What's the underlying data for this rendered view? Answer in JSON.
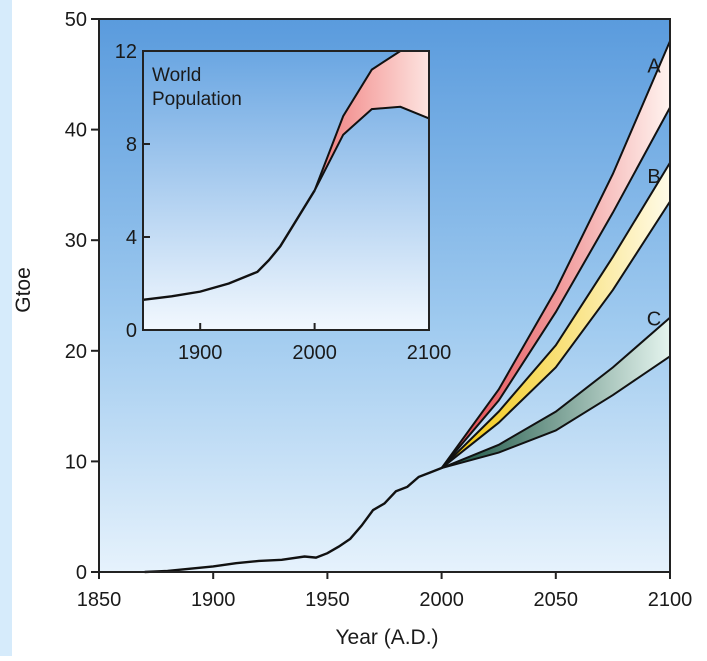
{
  "chart_data": [
    {
      "type": "area",
      "title": "",
      "xlabel": "Year (A.D.)",
      "ylabel": "Gtoe",
      "xlim": [
        1850,
        2100
      ],
      "ylim": [
        0,
        50
      ],
      "xticks": [
        1850,
        1900,
        1950,
        2000,
        2050,
        2100
      ],
      "yticks": [
        0,
        10,
        20,
        30,
        40,
        50
      ],
      "grid": false,
      "history": {
        "x": [
          1870,
          1880,
          1890,
          1900,
          1910,
          1920,
          1930,
          1940,
          1945,
          1950,
          1955,
          1960,
          1965,
          1970,
          1975,
          1980,
          1985,
          1990,
          1995,
          2000
        ],
        "y": [
          0.0,
          0.1,
          0.3,
          0.5,
          0.8,
          1.0,
          1.1,
          1.4,
          1.3,
          1.7,
          2.3,
          3.0,
          4.2,
          5.6,
          6.2,
          7.3,
          7.7,
          8.6,
          9.0,
          9.4
        ]
      },
      "scenarios": [
        {
          "name": "A",
          "x": [
            2000,
            2025,
            2050,
            2075,
            2100
          ],
          "upper": [
            9.4,
            16.5,
            25.5,
            36.0,
            48.0
          ],
          "lower": [
            9.4,
            15.5,
            23.5,
            32.5,
            42.0
          ],
          "color": "#e8494e"
        },
        {
          "name": "B",
          "x": [
            2000,
            2025,
            2050,
            2075,
            2100
          ],
          "upper": [
            9.4,
            14.5,
            20.5,
            28.5,
            37.0
          ],
          "lower": [
            9.4,
            13.5,
            18.5,
            25.5,
            33.5
          ],
          "color": "#f4d31e"
        },
        {
          "name": "C",
          "x": [
            2000,
            2025,
            2050,
            2075,
            2100
          ],
          "upper": [
            9.4,
            11.5,
            14.5,
            18.5,
            23.0
          ],
          "lower": [
            9.4,
            10.8,
            12.8,
            16.0,
            19.5
          ],
          "color": "#1f6b55"
        }
      ]
    },
    {
      "type": "area",
      "title": "World Population",
      "xlabel": "",
      "ylabel": "",
      "xlim": [
        1850,
        2100
      ],
      "ylim": [
        0,
        12
      ],
      "xticks": [
        1900,
        2000,
        2100
      ],
      "yticks": [
        0,
        4,
        8,
        12
      ],
      "grid": false,
      "history": {
        "x": [
          1850,
          1875,
          1900,
          1925,
          1950,
          1960,
          1970,
          1980,
          1990,
          2000
        ],
        "y": [
          1.3,
          1.45,
          1.65,
          2.0,
          2.5,
          3.0,
          3.6,
          4.4,
          5.2,
          6.0
        ]
      },
      "projection": {
        "x": [
          2000,
          2025,
          2050,
          2075,
          2100
        ],
        "upper": [
          6.0,
          9.2,
          11.2,
          12.0,
          12.0
        ],
        "lower": [
          6.0,
          8.4,
          9.5,
          9.6,
          9.1
        ]
      },
      "color": "#f08a8a"
    }
  ]
}
